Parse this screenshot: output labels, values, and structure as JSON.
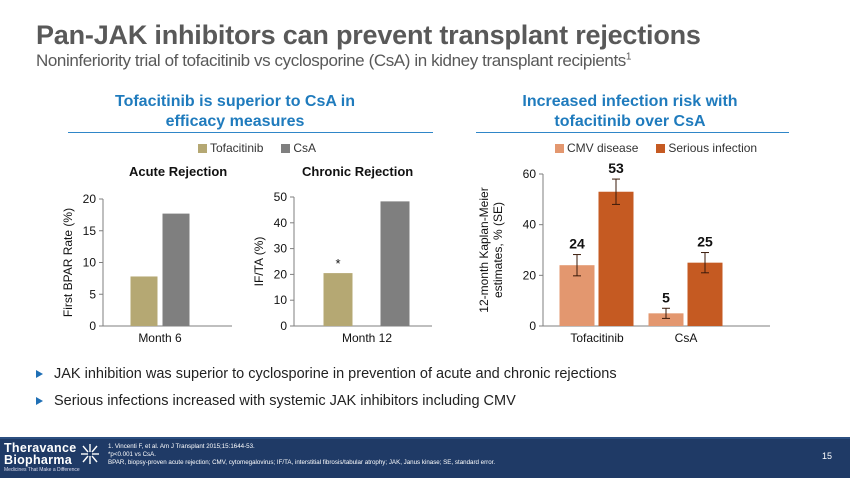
{
  "title": "Pan-JAK inhibitors can prevent transplant rejections",
  "subtitle": "Noninferiority trial of tofacitinib vs cyclosporine (CsA) in kidney transplant recipients",
  "subtitle_sup": "1",
  "left_section": {
    "heading_line1": "Tofacitinib is superior to CsA in",
    "heading_line2": "efficacy measures",
    "legend": [
      {
        "label": "Tofacitinib",
        "color": "#b5a873"
      },
      {
        "label": "CsA",
        "color": "#7f7f7f"
      }
    ]
  },
  "right_section": {
    "heading_line1": "Increased infection risk with",
    "heading_line2": "tofacitinib over CsA",
    "legend": [
      {
        "label": "CMV disease",
        "color": "#e3976f"
      },
      {
        "label": "Serious infection",
        "color": "#c55a22"
      }
    ]
  },
  "chart_data": [
    {
      "type": "bar",
      "title": "Acute Rejection",
      "categories": [
        "Month 6"
      ],
      "series": [
        {
          "name": "Tofacitinib",
          "values": [
            7.8
          ],
          "color": "#b5a873"
        },
        {
          "name": "CsA",
          "values": [
            17.7
          ],
          "color": "#7f7f7f"
        }
      ],
      "xlabel": "",
      "ylabel": "First BPAR Rate (%)",
      "ylim": [
        0,
        20
      ],
      "yticks": [
        0,
        5,
        10,
        15,
        20
      ],
      "grid": false,
      "legend": "top-center"
    },
    {
      "type": "bar",
      "title": "Chronic Rejection",
      "categories": [
        "Month 12"
      ],
      "series": [
        {
          "name": "Tofacitinib",
          "values": [
            20.5
          ],
          "color": "#b5a873",
          "annotation": "*"
        },
        {
          "name": "CsA",
          "values": [
            48.3
          ],
          "color": "#7f7f7f"
        }
      ],
      "xlabel": "",
      "ylabel": "IF/TA (%)",
      "ylim": [
        0,
        50
      ],
      "yticks": [
        0,
        10,
        20,
        30,
        40,
        50
      ],
      "grid": false,
      "legend": "top-center"
    },
    {
      "type": "bar",
      "title": "",
      "categories": [
        "Tofacitinib",
        "CsA"
      ],
      "series": [
        {
          "name": "CMV disease",
          "values": [
            24,
            5
          ],
          "se": [
            4.2,
            2
          ],
          "labels": [
            "24",
            "5"
          ],
          "color": "#e3976f"
        },
        {
          "name": "Serious infection",
          "values": [
            53,
            25
          ],
          "se": [
            5,
            4
          ],
          "labels": [
            "53",
            "25"
          ],
          "color": "#c55a22"
        }
      ],
      "xlabel": "",
      "ylabel": "12-month Kaplan-Meier estimates, % (SE)",
      "ylabel_line1": "12-month Kaplan-Meier",
      "ylabel_line2": "estimates, % (SE)",
      "ylim": [
        0,
        60
      ],
      "yticks": [
        0,
        20,
        40,
        60
      ],
      "grid": false,
      "legend": "top"
    }
  ],
  "bullets": [
    "JAK inhibition was superior to cyclosporine in prevention of acute and chronic rejections",
    "Serious infections increased with systemic JAK inhibitors including CMV"
  ],
  "footer": {
    "logo_line1": "Theravance",
    "logo_line2": "Biopharma",
    "logo_tagline": "Medicines That Make a Difference",
    "notes": [
      "1. Vincenti F, et al. Am J Transplant 2015;15:1644-53.",
      "*p<0.001 vs CsA.",
      "BPAR, biopsy-proven acute rejection; CMV, cytomegalovirus; IF/TA, interstitial fibrosis/tabular atrophy; JAK, Janus kinase; SE,  standard error."
    ],
    "page_number": "15"
  },
  "colors": {
    "heading_blue": "#1f7bbd",
    "footer_navy": "#1f3a66",
    "title_gray": "#595959"
  }
}
